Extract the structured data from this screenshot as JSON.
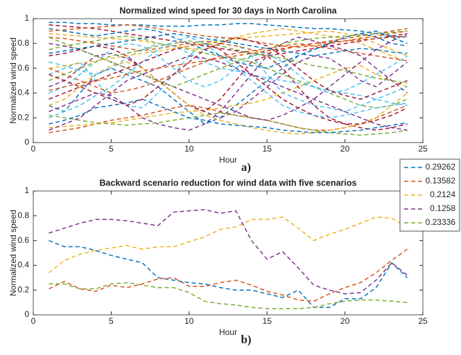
{
  "chart_data": [
    {
      "type": "line",
      "title": "Normalized wind speed for 30 days in North Carolina",
      "xlabel": "Hour",
      "ylabel": "Normalized wind speed",
      "annotation": "a)",
      "x": [
        1,
        2,
        3,
        4,
        5,
        6,
        7,
        8,
        9,
        10,
        11,
        12,
        13,
        14,
        15,
        16,
        17,
        18,
        19,
        20,
        21,
        22,
        23,
        24
      ],
      "xlim": [
        0,
        25
      ],
      "xticks": [
        0,
        5,
        10,
        15,
        20,
        25
      ],
      "ylim": [
        0,
        1
      ],
      "yticks": [
        0,
        0.2,
        0.4,
        0.6,
        0.8,
        1
      ],
      "grid": false,
      "line_style": "dashed",
      "series": [
        {
          "color": "#0072BD",
          "values": [
            0.3,
            0.25,
            0.4,
            0.55,
            0.6,
            0.55,
            0.5,
            0.45,
            0.35,
            0.25,
            0.15,
            0.2,
            0.3,
            0.4,
            0.5,
            0.6,
            0.7,
            0.75,
            0.8,
            0.85,
            0.88,
            0.9,
            0.85,
            0.8
          ]
        },
        {
          "color": "#D95319",
          "values": [
            0.08,
            0.1,
            0.12,
            0.15,
            0.18,
            0.2,
            0.22,
            0.25,
            0.28,
            0.3,
            0.28,
            0.25,
            0.22,
            0.2,
            0.18,
            0.15,
            0.12,
            0.1,
            0.1,
            0.12,
            0.15,
            0.2,
            0.25,
            0.3
          ]
        },
        {
          "color": "#EDB120",
          "values": [
            0.12,
            0.13,
            0.14,
            0.15,
            0.16,
            0.18,
            0.2,
            0.22,
            0.24,
            0.25,
            0.26,
            0.28,
            0.3,
            0.32,
            0.35,
            0.4,
            0.45,
            0.5,
            0.55,
            0.6,
            0.62,
            0.55,
            0.5,
            0.45
          ]
        },
        {
          "color": "#7E2F8E",
          "values": [
            0.45,
            0.5,
            0.6,
            0.7,
            0.72,
            0.68,
            0.6,
            0.5,
            0.4,
            0.3,
            0.25,
            0.2,
            0.25,
            0.35,
            0.45,
            0.55,
            0.65,
            0.7,
            0.68,
            0.6,
            0.5,
            0.45,
            0.55,
            0.65
          ]
        },
        {
          "color": "#77AC30",
          "values": [
            0.75,
            0.78,
            0.8,
            0.82,
            0.85,
            0.86,
            0.84,
            0.8,
            0.78,
            0.75,
            0.72,
            0.7,
            0.68,
            0.65,
            0.6,
            0.55,
            0.5,
            0.45,
            0.4,
            0.35,
            0.3,
            0.28,
            0.3,
            0.35
          ]
        },
        {
          "color": "#4DBEEE",
          "values": [
            0.55,
            0.6,
            0.65,
            0.5,
            0.35,
            0.3,
            0.28,
            0.4,
            0.55,
            0.7,
            0.8,
            0.85,
            0.8,
            0.7,
            0.55,
            0.4,
            0.35,
            0.3,
            0.28,
            0.25,
            0.3,
            0.35,
            0.4,
            0.45
          ]
        },
        {
          "color": "#A2142F",
          "values": [
            0.95,
            0.94,
            0.93,
            0.92,
            0.9,
            0.88,
            0.86,
            0.84,
            0.82,
            0.8,
            0.78,
            0.76,
            0.74,
            0.72,
            0.7,
            0.72,
            0.74,
            0.76,
            0.78,
            0.8,
            0.82,
            0.84,
            0.86,
            0.88
          ]
        },
        {
          "color": "#0072BD",
          "values": [
            0.97,
            0.97,
            0.96,
            0.96,
            0.95,
            0.95,
            0.95,
            0.94,
            0.94,
            0.94,
            0.95,
            0.95,
            0.96,
            0.96,
            0.95,
            0.94,
            0.93,
            0.92,
            0.92,
            0.91,
            0.9,
            0.88,
            0.86,
            0.85
          ]
        },
        {
          "color": "#D95319",
          "values": [
            0.6,
            0.55,
            0.5,
            0.45,
            0.4,
            0.42,
            0.45,
            0.5,
            0.55,
            0.6,
            0.65,
            0.7,
            0.72,
            0.74,
            0.76,
            0.78,
            0.8,
            0.78,
            0.76,
            0.74,
            0.72,
            0.7,
            0.68,
            0.66
          ]
        },
        {
          "color": "#EDB120",
          "values": [
            0.88,
            0.87,
            0.86,
            0.85,
            0.84,
            0.83,
            0.82,
            0.8,
            0.78,
            0.76,
            0.75,
            0.8,
            0.85,
            0.88,
            0.9,
            0.92,
            0.9,
            0.88,
            0.86,
            0.84,
            0.8,
            0.75,
            0.7,
            0.65
          ]
        },
        {
          "color": "#7E2F8E",
          "values": [
            0.25,
            0.3,
            0.35,
            0.4,
            0.38,
            0.3,
            0.2,
            0.15,
            0.12,
            0.1,
            0.15,
            0.25,
            0.4,
            0.55,
            0.7,
            0.8,
            0.85,
            0.82,
            0.78,
            0.75,
            0.7,
            0.6,
            0.5,
            0.4
          ]
        },
        {
          "color": "#77AC30",
          "values": [
            0.22,
            0.2,
            0.18,
            0.16,
            0.15,
            0.14,
            0.15,
            0.16,
            0.18,
            0.2,
            0.22,
            0.24,
            0.22,
            0.2,
            0.18,
            0.15,
            0.12,
            0.1,
            0.08,
            0.07,
            0.06,
            0.07,
            0.08,
            0.1
          ]
        },
        {
          "color": "#4DBEEE",
          "values": [
            0.4,
            0.45,
            0.55,
            0.65,
            0.75,
            0.8,
            0.78,
            0.7,
            0.6,
            0.5,
            0.45,
            0.5,
            0.6,
            0.7,
            0.72,
            0.65,
            0.55,
            0.45,
            0.4,
            0.42,
            0.48,
            0.55,
            0.62,
            0.7
          ]
        },
        {
          "color": "#A2142F",
          "values": [
            0.7,
            0.72,
            0.75,
            0.78,
            0.76,
            0.7,
            0.6,
            0.5,
            0.4,
            0.3,
            0.25,
            0.35,
            0.5,
            0.65,
            0.7,
            0.6,
            0.45,
            0.3,
            0.2,
            0.15,
            0.12,
            0.1,
            0.12,
            0.15
          ]
        },
        {
          "color": "#0072BD",
          "values": [
            0.92,
            0.9,
            0.88,
            0.86,
            0.88,
            0.9,
            0.92,
            0.9,
            0.85,
            0.8,
            0.75,
            0.7,
            0.65,
            0.62,
            0.6,
            0.65,
            0.7,
            0.75,
            0.8,
            0.85,
            0.88,
            0.85,
            0.8,
            0.78
          ]
        },
        {
          "color": "#D95319",
          "values": [
            0.85,
            0.84,
            0.82,
            0.8,
            0.78,
            0.76,
            0.74,
            0.76,
            0.78,
            0.8,
            0.82,
            0.8,
            0.78,
            0.75,
            0.72,
            0.75,
            0.78,
            0.8,
            0.82,
            0.84,
            0.86,
            0.88,
            0.9,
            0.92
          ]
        },
        {
          "color": "#EDB120",
          "values": [
            0.3,
            0.35,
            0.45,
            0.55,
            0.62,
            0.65,
            0.6,
            0.5,
            0.4,
            0.3,
            0.22,
            0.18,
            0.15,
            0.12,
            0.1,
            0.08,
            0.07,
            0.08,
            0.1,
            0.12,
            0.15,
            0.2,
            0.3,
            0.4
          ]
        },
        {
          "color": "#7E2F8E",
          "values": [
            0.8,
            0.78,
            0.75,
            0.7,
            0.65,
            0.6,
            0.55,
            0.5,
            0.45,
            0.4,
            0.35,
            0.3,
            0.25,
            0.2,
            0.18,
            0.22,
            0.28,
            0.35,
            0.45,
            0.55,
            0.65,
            0.75,
            0.82,
            0.88
          ]
        },
        {
          "color": "#77AC30",
          "values": [
            0.5,
            0.55,
            0.6,
            0.65,
            0.7,
            0.72,
            0.75,
            0.78,
            0.8,
            0.82,
            0.8,
            0.78,
            0.75,
            0.72,
            0.7,
            0.68,
            0.65,
            0.62,
            0.6,
            0.58,
            0.55,
            0.52,
            0.5,
            0.48
          ]
        },
        {
          "color": "#4DBEEE",
          "values": [
            0.65,
            0.62,
            0.58,
            0.55,
            0.6,
            0.68,
            0.75,
            0.8,
            0.78,
            0.72,
            0.65,
            0.6,
            0.58,
            0.55,
            0.52,
            0.5,
            0.48,
            0.45,
            0.42,
            0.4,
            0.38,
            0.35,
            0.32,
            0.3
          ]
        },
        {
          "color": "#A2142F",
          "values": [
            0.35,
            0.4,
            0.45,
            0.5,
            0.55,
            0.6,
            0.65,
            0.7,
            0.75,
            0.78,
            0.8,
            0.75,
            0.65,
            0.55,
            0.45,
            0.35,
            0.28,
            0.22,
            0.18,
            0.15,
            0.15,
            0.18,
            0.22,
            0.28
          ]
        },
        {
          "color": "#0072BD",
          "values": [
            0.15,
            0.18,
            0.22,
            0.28,
            0.3,
            0.32,
            0.35,
            0.3,
            0.25,
            0.2,
            0.18,
            0.15,
            0.14,
            0.13,
            0.12,
            0.1,
            0.09,
            0.08,
            0.08,
            0.09,
            0.1,
            0.12,
            0.14,
            0.16
          ]
        },
        {
          "color": "#D95319",
          "values": [
            0.9,
            0.91,
            0.92,
            0.93,
            0.94,
            0.95,
            0.94,
            0.92,
            0.9,
            0.88,
            0.86,
            0.85,
            0.84,
            0.82,
            0.8,
            0.78,
            0.77,
            0.78,
            0.8,
            0.82,
            0.84,
            0.86,
            0.88,
            0.9
          ]
        },
        {
          "color": "#EDB120",
          "values": [
            0.6,
            0.62,
            0.64,
            0.66,
            0.68,
            0.7,
            0.72,
            0.74,
            0.76,
            0.78,
            0.8,
            0.82,
            0.84,
            0.85,
            0.86,
            0.87,
            0.88,
            0.89,
            0.9,
            0.88,
            0.85,
            0.8,
            0.75,
            0.7
          ]
        },
        {
          "color": "#7E2F8E",
          "values": [
            0.1,
            0.15,
            0.2,
            0.3,
            0.4,
            0.5,
            0.55,
            0.6,
            0.65,
            0.7,
            0.68,
            0.65,
            0.6,
            0.55,
            0.5,
            0.45,
            0.4,
            0.35,
            0.3,
            0.25,
            0.2,
            0.15,
            0.12,
            0.1
          ]
        },
        {
          "color": "#77AC30",
          "values": [
            0.85,
            0.8,
            0.75,
            0.7,
            0.65,
            0.6,
            0.55,
            0.5,
            0.45,
            0.5,
            0.55,
            0.6,
            0.65,
            0.7,
            0.75,
            0.8,
            0.82,
            0.84,
            0.85,
            0.86,
            0.87,
            0.88,
            0.89,
            0.9
          ]
        },
        {
          "color": "#4DBEEE",
          "values": [
            0.2,
            0.25,
            0.3,
            0.38,
            0.45,
            0.55,
            0.65,
            0.75,
            0.82,
            0.85,
            0.8,
            0.7,
            0.6,
            0.5,
            0.4,
            0.3,
            0.25,
            0.22,
            0.2,
            0.22,
            0.25,
            0.28,
            0.3,
            0.32
          ]
        },
        {
          "color": "#A2142F",
          "values": [
            0.55,
            0.5,
            0.45,
            0.4,
            0.35,
            0.3,
            0.35,
            0.45,
            0.55,
            0.65,
            0.75,
            0.8,
            0.85,
            0.82,
            0.78,
            0.7,
            0.6,
            0.5,
            0.42,
            0.38,
            0.35,
            0.4,
            0.45,
            0.5
          ]
        },
        {
          "color": "#0072BD",
          "values": [
            0.72,
            0.74,
            0.76,
            0.78,
            0.8,
            0.82,
            0.84,
            0.86,
            0.88,
            0.86,
            0.84,
            0.82,
            0.8,
            0.78,
            0.76,
            0.74,
            0.72,
            0.7,
            0.72,
            0.74,
            0.76,
            0.75,
            0.73,
            0.72
          ]
        },
        {
          "color": "#D95319",
          "values": [
            0.42,
            0.45,
            0.48,
            0.5,
            0.52,
            0.55,
            0.58,
            0.6,
            0.62,
            0.64,
            0.66,
            0.68,
            0.7,
            0.72,
            0.74,
            0.76,
            0.78,
            0.8,
            0.81,
            0.82,
            0.83,
            0.84,
            0.85,
            0.86
          ]
        }
      ]
    },
    {
      "type": "line",
      "title": "Backward scenario reduction for wind data with five scenarios",
      "xlabel": "Hour",
      "ylabel": "Normalized wind speed",
      "annotation": "b)",
      "x": [
        1,
        2,
        3,
        4,
        5,
        6,
        7,
        8,
        9,
        10,
        11,
        12,
        13,
        14,
        15,
        16,
        17,
        18,
        19,
        20,
        21,
        22,
        23,
        24
      ],
      "xlim": [
        0,
        25
      ],
      "xticks": [
        0,
        5,
        10,
        15,
        20,
        25
      ],
      "ylim": [
        0,
        1
      ],
      "yticks": [
        0,
        0.2,
        0.4,
        0.6,
        0.8,
        1
      ],
      "grid": false,
      "line_style": "dashed",
      "legend": "outside-right",
      "series": [
        {
          "name": "0.29262",
          "color": "#0072BD",
          "values": [
            0.6,
            0.55,
            0.55,
            0.52,
            0.48,
            0.45,
            0.42,
            0.3,
            0.28,
            0.26,
            0.25,
            0.22,
            0.2,
            0.2,
            0.17,
            0.14,
            0.2,
            0.06,
            0.06,
            0.13,
            0.13,
            0.22,
            0.42,
            0.3
          ]
        },
        {
          "name": "0.13582",
          "color": "#D95319",
          "values": [
            0.21,
            0.27,
            0.21,
            0.19,
            0.24,
            0.22,
            0.25,
            0.29,
            0.3,
            0.23,
            0.23,
            0.26,
            0.28,
            0.24,
            0.19,
            0.16,
            0.12,
            0.11,
            0.17,
            0.22,
            0.26,
            0.34,
            0.44,
            0.53
          ]
        },
        {
          "name": "0.2124",
          "color": "#EDB120",
          "values": [
            0.34,
            0.44,
            0.49,
            0.52,
            0.54,
            0.56,
            0.53,
            0.55,
            0.55,
            0.59,
            0.63,
            0.69,
            0.71,
            0.77,
            0.77,
            0.79,
            0.7,
            0.6,
            0.65,
            0.69,
            0.74,
            0.79,
            0.78,
            0.71
          ]
        },
        {
          "name": "0.1258",
          "color": "#7E2F8E",
          "values": [
            0.66,
            0.7,
            0.74,
            0.77,
            0.77,
            0.76,
            0.74,
            0.72,
            0.83,
            0.84,
            0.85,
            0.82,
            0.84,
            0.6,
            0.45,
            0.51,
            0.38,
            0.24,
            0.2,
            0.17,
            0.18,
            0.28,
            0.42,
            0.32
          ]
        },
        {
          "name": "0.23336",
          "color": "#77AC30",
          "values": [
            0.25,
            0.25,
            0.21,
            0.21,
            0.25,
            0.26,
            0.24,
            0.22,
            0.22,
            0.18,
            0.11,
            0.09,
            0.08,
            0.06,
            0.05,
            0.05,
            0.05,
            0.06,
            0.09,
            0.11,
            0.12,
            0.12,
            0.11,
            0.1
          ]
        }
      ]
    }
  ]
}
